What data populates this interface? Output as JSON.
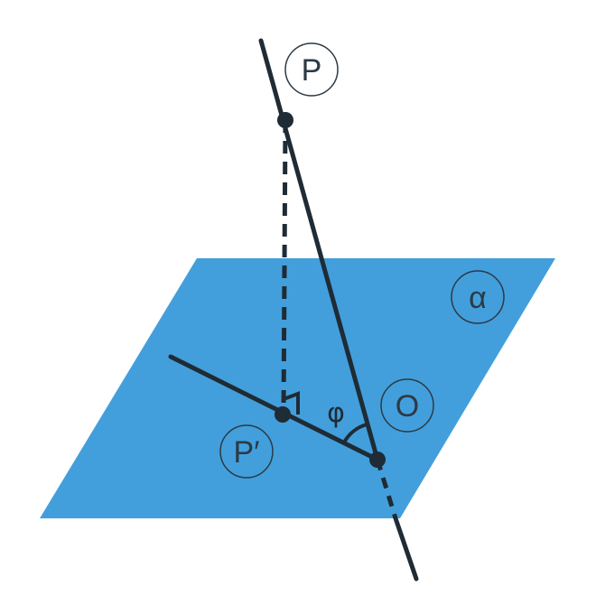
{
  "labels": {
    "P": "P",
    "P_prime": "P′",
    "O": "O",
    "alpha": "α",
    "phi": "φ"
  },
  "colors": {
    "plane": "#429fdc",
    "line": "#1f2b35",
    "label_circle_fill": "#ffffff",
    "label_text": "#2c3a45"
  }
}
